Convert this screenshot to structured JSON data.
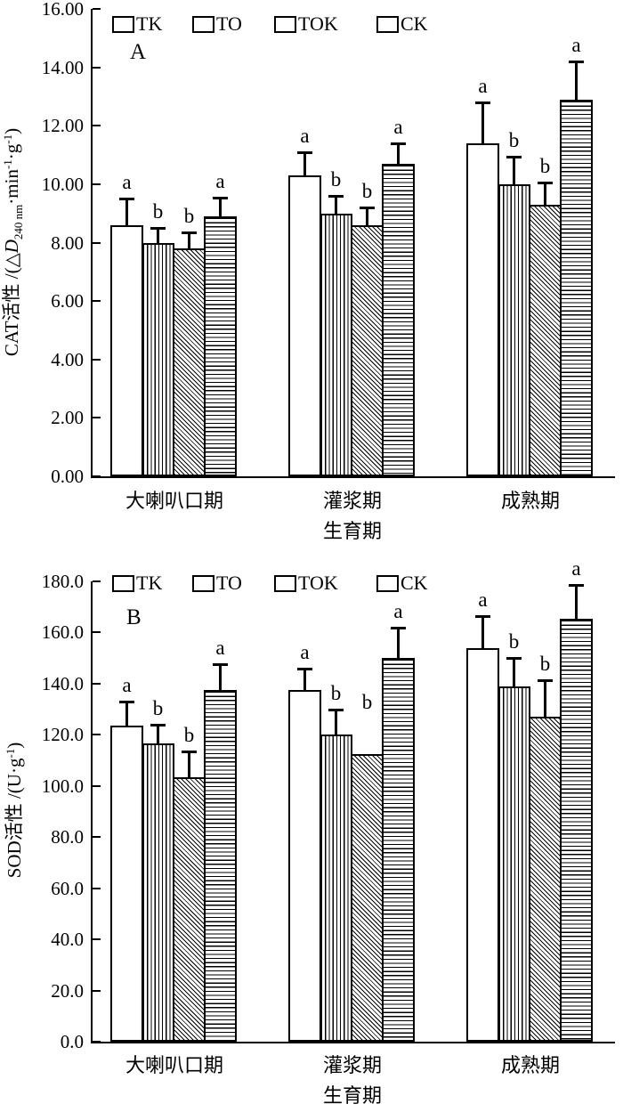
{
  "colors": {
    "ink": "#000000",
    "background": "#ffffff"
  },
  "chart_data": [
    {
      "type": "bar",
      "panel_label": "A",
      "title": "",
      "ylabel_text": "CAT活性 /(△D240 nm·min-1·g-1)",
      "ylabel_parts": [
        {
          "t": "CAT活性 /(△"
        },
        {
          "t": "D",
          "style": "italic"
        },
        {
          "t": "240 nm",
          "style": "sub"
        },
        {
          "t": "·min"
        },
        {
          "t": "-1",
          "style": "sup"
        },
        {
          "t": "·g"
        },
        {
          "t": "-1",
          "style": "sup"
        },
        {
          "t": ")"
        }
      ],
      "xlabel": "生育期",
      "categories": [
        "大喇叭口期",
        "灌浆期",
        "成熟期"
      ],
      "ylim": [
        0,
        16
      ],
      "ytick_step": 2,
      "ytick_labels": [
        "0.00",
        "2.00",
        "4.00",
        "6.00",
        "8.00",
        "10.00",
        "12.00",
        "14.00",
        "16.00"
      ],
      "grid": false,
      "legend_position": "top-left-inside",
      "series": [
        {
          "name": "TK",
          "pattern": "plain",
          "values": [
            8.6,
            10.3,
            11.4
          ],
          "errors": [
            0.9,
            0.8,
            1.4
          ],
          "sig": [
            "a",
            "a",
            "a"
          ]
        },
        {
          "name": "TO",
          "pattern": "vertical-hatch",
          "values": [
            8.0,
            9.0,
            10.0
          ],
          "errors": [
            0.5,
            0.6,
            0.95
          ],
          "sig": [
            "b",
            "b",
            "b"
          ]
        },
        {
          "name": "TOK",
          "pattern": "diagonal-hatch",
          "values": [
            7.8,
            8.6,
            9.3
          ],
          "errors": [
            0.55,
            0.6,
            0.75
          ],
          "sig": [
            "b",
            "b",
            "b"
          ]
        },
        {
          "name": "CK",
          "pattern": "horizontal-hatch",
          "values": [
            8.9,
            10.7,
            12.9
          ],
          "errors": [
            0.65,
            0.7,
            1.3
          ],
          "sig": [
            "a",
            "a",
            "a"
          ]
        }
      ]
    },
    {
      "type": "bar",
      "panel_label": "B",
      "title": "",
      "ylabel_text": "SOD活性 /(U·g-1)",
      "ylabel_parts": [
        {
          "t": "SOD活性 /(U·g"
        },
        {
          "t": "-1",
          "style": "sup"
        },
        {
          "t": ")"
        }
      ],
      "xlabel": "生育期",
      "categories": [
        "大喇叭口期",
        "灌浆期",
        "成熟期"
      ],
      "ylim": [
        0,
        180
      ],
      "ytick_step": 20,
      "ytick_labels": [
        "0.0",
        "20.0",
        "40.0",
        "60.0",
        "80.0",
        "100.0",
        "120.0",
        "140.0",
        "160.0",
        "180.0"
      ],
      "grid": false,
      "legend_position": "top-left-inside",
      "series": [
        {
          "name": "TK",
          "pattern": "plain",
          "values": [
            123.5,
            137.5,
            154.0
          ],
          "errors": [
            9.5,
            8.5,
            12.5
          ],
          "sig": [
            "a",
            "a",
            "a"
          ]
        },
        {
          "name": "TO",
          "pattern": "vertical-hatch",
          "values": [
            116.5,
            120.0,
            139.0
          ],
          "errors": [
            7.5,
            10.0,
            11.0
          ],
          "sig": [
            "b",
            "b",
            "b"
          ]
        },
        {
          "name": "TOK",
          "pattern": "diagonal-hatch",
          "values": [
            103.5,
            112.5,
            127.0
          ],
          "errors": [
            10.0,
            0,
            14.5
          ],
          "sig": [
            "b",
            "b",
            "b"
          ],
          "letter_lift": [
            0,
            40,
            0
          ]
        },
        {
          "name": "CK",
          "pattern": "horizontal-hatch",
          "values": [
            137.5,
            150.0,
            165.5
          ],
          "errors": [
            10.0,
            12.0,
            13.0
          ],
          "sig": [
            "a",
            "a",
            "a"
          ]
        }
      ]
    }
  ]
}
